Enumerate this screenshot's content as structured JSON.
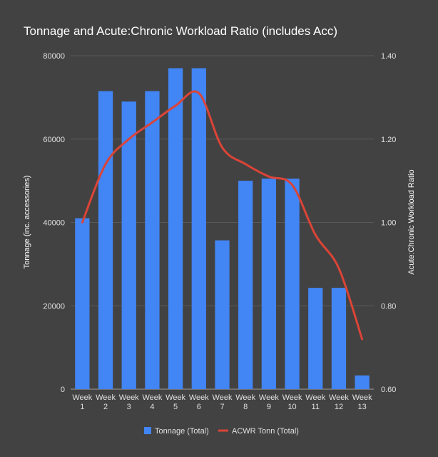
{
  "chart_data": {
    "type": "bar",
    "title": "Tonnage and Acute:Chronic Workload Ratio (includes Acc)",
    "categories": [
      [
        "Week",
        "1"
      ],
      [
        "Week",
        "2"
      ],
      [
        "Week",
        "3"
      ],
      [
        "Week",
        "4"
      ],
      [
        "Week",
        "5"
      ],
      [
        "Week",
        "6"
      ],
      [
        "Week",
        "7"
      ],
      [
        "Week",
        "8"
      ],
      [
        "Week",
        "9"
      ],
      [
        "Week",
        "10"
      ],
      [
        "Week",
        "11"
      ],
      [
        "Week",
        "12"
      ],
      [
        "Week",
        "13"
      ]
    ],
    "ylabel_left": "Tonnage (inc. accessories)",
    "ylabel_right": "Acute:Chronic Workload Ratio",
    "ylim_left": [
      0,
      80000
    ],
    "yticks_left": [
      "0",
      "20000",
      "40000",
      "60000",
      "80000"
    ],
    "ylim_right": [
      0.6,
      1.4
    ],
    "yticks_right": [
      "0.60",
      "0.80",
      "1.00",
      "1.20",
      "1.40"
    ],
    "grid": true,
    "legend_position": "bottom",
    "series": [
      {
        "name": "Tonnage (Total)",
        "type": "bar",
        "axis": "left",
        "color": "#4285f4",
        "values": [
          41000,
          71500,
          69000,
          71500,
          77000,
          77000,
          35700,
          50000,
          50500,
          50500,
          24300,
          24300,
          3300
        ]
      },
      {
        "name": "ACWR Tonn (Total)",
        "type": "line",
        "axis": "right",
        "color": "#db4437",
        "smooth": true,
        "values": [
          1.0,
          1.14,
          1.2,
          1.24,
          1.28,
          1.31,
          1.18,
          1.14,
          1.11,
          1.09,
          0.97,
          0.89,
          0.72
        ]
      }
    ]
  }
}
